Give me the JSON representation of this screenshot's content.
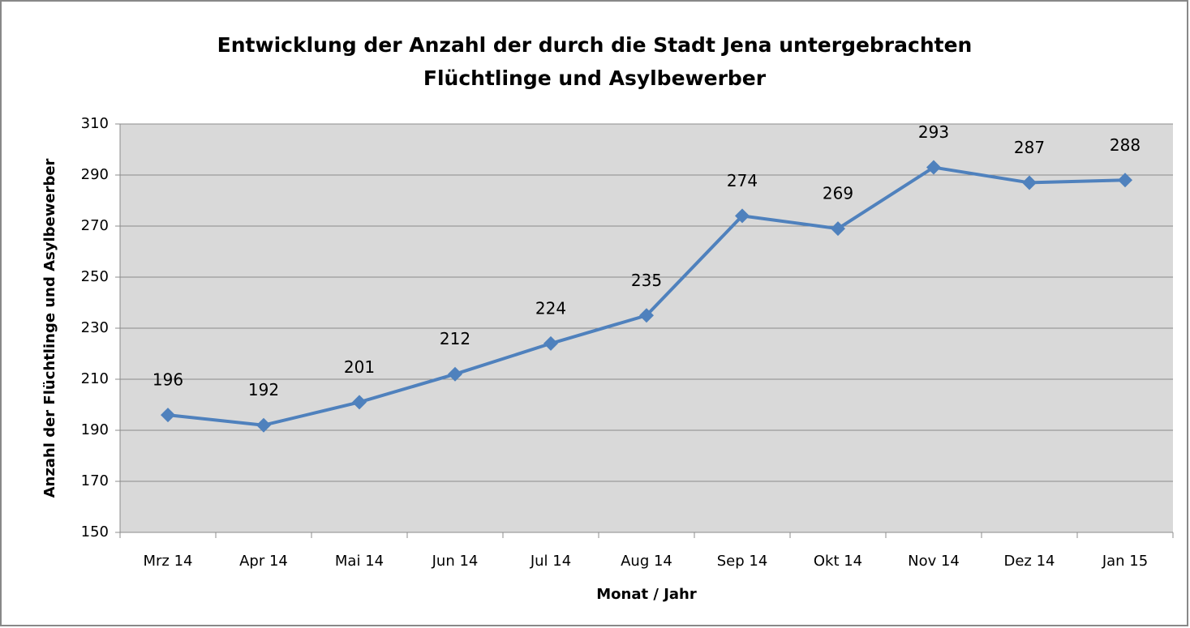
{
  "chart_data": {
    "type": "line",
    "title": [
      "Entwicklung der Anzahl der durch die Stadt Jena untergebrachten",
      "Flüchtlinge und Asylbewerber"
    ],
    "xlabel": "Monat / Jahr",
    "ylabel": "Anzahl der Flüchtlinge und Asylbewerber",
    "categories": [
      "Mrz 14",
      "Apr 14",
      "Mai 14",
      "Jun 14",
      "Jul 14",
      "Aug 14",
      "Sep 14",
      "Okt 14",
      "Nov 14",
      "Dez 14",
      "Jan 15"
    ],
    "series": [
      {
        "color": "#4f81bd",
        "values": [
          196,
          192,
          201,
          212,
          224,
          235,
          274,
          269,
          293,
          287,
          288
        ]
      }
    ],
    "ylim": [
      150,
      310
    ],
    "yticks": [
      150,
      170,
      190,
      210,
      230,
      250,
      270,
      290,
      310
    ],
    "grid": true
  }
}
